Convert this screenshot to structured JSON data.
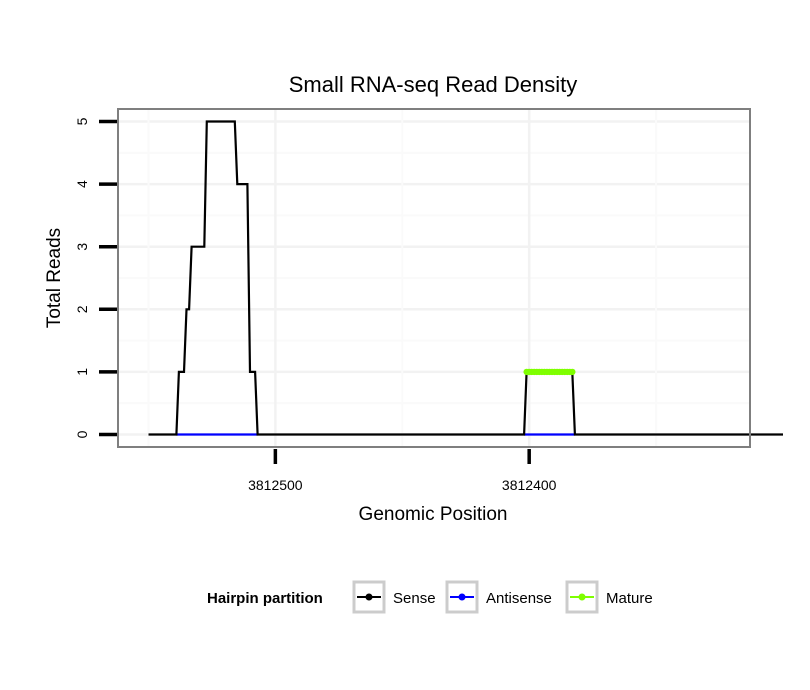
{
  "chart_data": {
    "type": "line",
    "title": "Small RNA-seq Read Density",
    "xlabel": "Genomic Position",
    "ylabel": "Total Reads",
    "x_reversed": true,
    "xlim": [
      3812562,
      3812313
    ],
    "ylim": [
      -0.2,
      5.2
    ],
    "x_ticks": [
      {
        "value": 3812500,
        "label": "3812500"
      },
      {
        "value": 3812400,
        "label": "3812400"
      }
    ],
    "y_ticks": [
      {
        "value": 0,
        "label": "0"
      },
      {
        "value": 1,
        "label": "1"
      },
      {
        "value": 2,
        "label": "2"
      },
      {
        "value": 3,
        "label": "3"
      },
      {
        "value": 4,
        "label": "4"
      },
      {
        "value": 5,
        "label": "5"
      }
    ],
    "grid": true,
    "legend": {
      "title": "Hairpin partition",
      "position": "bottom",
      "entries": [
        {
          "name": "Sense",
          "color": "#000000"
        },
        {
          "name": "Antisense",
          "color": "#0000ff"
        },
        {
          "name": "Mature",
          "color": "#7fff00"
        }
      ]
    },
    "series": [
      {
        "name": "Sense",
        "color": "#000000",
        "points": [
          [
            3812550,
            0
          ],
          [
            3812539,
            0
          ],
          [
            3812538,
            1
          ],
          [
            3812536,
            1
          ],
          [
            3812535,
            2
          ],
          [
            3812534,
            2
          ],
          [
            3812533,
            3
          ],
          [
            3812528,
            3
          ],
          [
            3812527,
            5
          ],
          [
            3812516,
            5
          ],
          [
            3812515,
            4
          ],
          [
            3812511,
            4
          ],
          [
            3812510,
            1
          ],
          [
            3812508,
            1
          ],
          [
            3812507,
            0
          ],
          [
            3812402,
            0
          ],
          [
            3812401,
            1
          ],
          [
            3812383,
            1
          ],
          [
            3812382,
            0
          ],
          [
            3812300,
            0
          ]
        ]
      },
      {
        "name": "Antisense",
        "color": "#0000ff",
        "points": [
          [
            3812539,
            0
          ],
          [
            3812507,
            0
          ],
          [
            3812402,
            0
          ],
          [
            3812382,
            0
          ]
        ]
      },
      {
        "name": "Mature",
        "color": "#7fff00",
        "points": [
          [
            3812401,
            1
          ],
          [
            3812400,
            1
          ],
          [
            3812399,
            1
          ],
          [
            3812398,
            1
          ],
          [
            3812397,
            1
          ],
          [
            3812396,
            1
          ],
          [
            3812395,
            1
          ],
          [
            3812394,
            1
          ],
          [
            3812393,
            1
          ],
          [
            3812392,
            1
          ],
          [
            3812391,
            1
          ],
          [
            3812390,
            1
          ],
          [
            3812389,
            1
          ],
          [
            3812388,
            1
          ],
          [
            3812387,
            1
          ],
          [
            3812386,
            1
          ],
          [
            3812385,
            1
          ],
          [
            3812384,
            1
          ],
          [
            3812383,
            1
          ]
        ]
      }
    ]
  }
}
